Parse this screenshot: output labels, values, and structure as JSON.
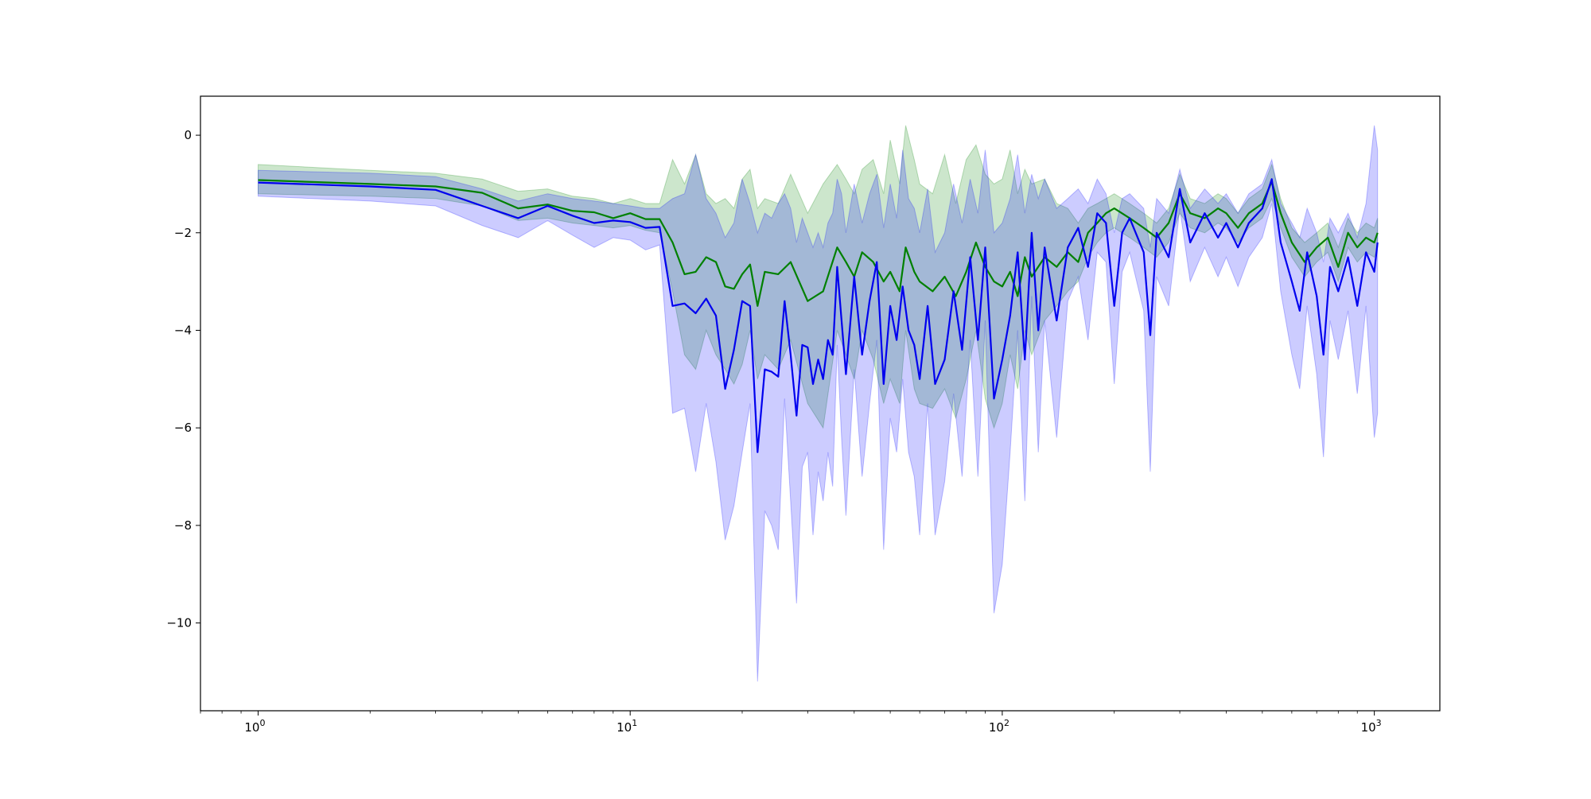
{
  "chart_data": {
    "type": "line",
    "title": "",
    "xlabel": "",
    "ylabel": "",
    "xscale": "log",
    "xlim": [
      0.7,
      1500
    ],
    "ylim": [
      -11.8,
      0.8
    ],
    "grid": false,
    "x_ticks": [
      {
        "value": 1,
        "base": "10",
        "exp": "0"
      },
      {
        "value": 10,
        "base": "10",
        "exp": "1"
      },
      {
        "value": 100,
        "base": "10",
        "exp": "2"
      },
      {
        "value": 1000,
        "base": "10",
        "exp": "3"
      }
    ],
    "y_ticks": [
      {
        "value": 0,
        "label": "0"
      },
      {
        "value": -2,
        "label": "−2"
      },
      {
        "value": -4,
        "label": "−4"
      },
      {
        "value": -6,
        "label": "−6"
      },
      {
        "value": -8,
        "label": "−8"
      },
      {
        "value": -10,
        "label": "−10"
      }
    ],
    "series": [
      {
        "color": "#008000",
        "band_color": "#008000",
        "band_opacity": 0.2,
        "x": [
          1,
          2,
          3,
          4,
          5,
          6,
          7,
          8,
          9,
          10,
          11,
          12,
          13,
          14,
          15,
          16,
          17,
          18,
          19,
          20,
          21,
          22,
          23,
          25,
          27,
          30,
          33,
          36,
          38,
          40,
          42,
          45,
          48,
          50,
          53,
          55,
          58,
          60,
          65,
          70,
          75,
          80,
          85,
          90,
          95,
          100,
          105,
          110,
          115,
          120,
          130,
          140,
          150,
          160,
          170,
          180,
          190,
          200,
          220,
          240,
          260,
          280,
          300,
          320,
          350,
          380,
          400,
          430,
          460,
          500,
          530,
          560,
          600,
          650,
          700,
          750,
          800,
          850,
          900,
          950,
          1000,
          1020
        ],
        "y": [
          -0.92,
          -1.0,
          -1.05,
          -1.18,
          -1.5,
          -1.42,
          -1.55,
          -1.58,
          -1.7,
          -1.6,
          -1.72,
          -1.72,
          -2.2,
          -2.85,
          -2.8,
          -2.5,
          -2.6,
          -3.1,
          -3.15,
          -2.85,
          -2.65,
          -3.5,
          -2.8,
          -2.85,
          -2.6,
          -3.4,
          -3.2,
          -2.3,
          -2.6,
          -2.9,
          -2.4,
          -2.6,
          -3.0,
          -2.8,
          -3.2,
          -2.3,
          -2.8,
          -3.0,
          -3.2,
          -2.9,
          -3.3,
          -2.8,
          -2.2,
          -2.7,
          -3.0,
          -3.1,
          -2.8,
          -3.3,
          -2.5,
          -2.9,
          -2.5,
          -2.7,
          -2.4,
          -2.6,
          -2.0,
          -1.8,
          -1.6,
          -1.5,
          -1.7,
          -1.9,
          -2.1,
          -1.8,
          -1.2,
          -1.6,
          -1.7,
          -1.5,
          -1.6,
          -1.9,
          -1.6,
          -1.4,
          -0.95,
          -1.6,
          -2.2,
          -2.6,
          -2.3,
          -2.1,
          -2.7,
          -2.0,
          -2.3,
          -2.1,
          -2.2,
          -2.0
        ],
        "lower": [
          -1.2,
          -1.25,
          -1.3,
          -1.45,
          -1.75,
          -1.7,
          -1.8,
          -1.85,
          -1.9,
          -1.85,
          -1.95,
          -2.0,
          -3.2,
          -4.5,
          -4.8,
          -4.0,
          -4.5,
          -4.8,
          -5.1,
          -4.7,
          -4.0,
          -5.0,
          -4.5,
          -4.8,
          -4.2,
          -5.5,
          -6.0,
          -4.0,
          -4.5,
          -5.0,
          -4.0,
          -4.6,
          -5.5,
          -5.0,
          -5.5,
          -4.0,
          -5.2,
          -5.5,
          -5.6,
          -5.2,
          -5.8,
          -5.0,
          -4.0,
          -5.4,
          -6.0,
          -5.5,
          -4.5,
          -5.2,
          -4.0,
          -4.5,
          -3.8,
          -3.5,
          -3.2,
          -3.0,
          -2.5,
          -2.2,
          -2.0,
          -1.9,
          -2.1,
          -2.3,
          -2.5,
          -2.2,
          -1.6,
          -1.9,
          -2.0,
          -1.8,
          -1.9,
          -2.2,
          -1.9,
          -1.7,
          -1.3,
          -1.9,
          -2.5,
          -2.9,
          -2.6,
          -2.4,
          -3.0,
          -2.3,
          -2.6,
          -2.4,
          -2.5,
          -2.3
        ],
        "upper": [
          -0.6,
          -0.72,
          -0.78,
          -0.9,
          -1.15,
          -1.1,
          -1.25,
          -1.3,
          -1.4,
          -1.3,
          -1.4,
          -1.4,
          -0.5,
          -1.0,
          -0.4,
          -1.2,
          -1.4,
          -1.3,
          -1.5,
          -0.9,
          -0.7,
          -1.5,
          -1.3,
          -1.4,
          -0.8,
          -1.6,
          -1.0,
          -0.6,
          -0.9,
          -1.2,
          -0.7,
          -0.5,
          -1.2,
          -0.1,
          -1.0,
          0.2,
          -0.5,
          -1.0,
          -1.2,
          -0.4,
          -1.4,
          -0.5,
          -0.2,
          -0.8,
          -1.0,
          -0.9,
          -0.3,
          -1.2,
          -0.7,
          -1.0,
          -0.9,
          -1.4,
          -1.5,
          -1.8,
          -1.5,
          -1.4,
          -1.3,
          -1.2,
          -1.4,
          -1.6,
          -1.8,
          -1.5,
          -0.8,
          -1.3,
          -1.4,
          -1.2,
          -1.3,
          -1.6,
          -1.3,
          -1.1,
          -0.6,
          -1.3,
          -1.9,
          -2.2,
          -2.0,
          -1.8,
          -2.3,
          -1.7,
          -2.0,
          -1.8,
          -1.9,
          -1.7
        ]
      },
      {
        "color": "#0000ee",
        "band_color": "#0000ff",
        "band_opacity": 0.2,
        "x": [
          1,
          2,
          3,
          4,
          5,
          6,
          7,
          8,
          9,
          10,
          11,
          12,
          13,
          14,
          15,
          16,
          17,
          18,
          19,
          20,
          21,
          22,
          23,
          24,
          25,
          26,
          27,
          28,
          29,
          30,
          31,
          32,
          33,
          34,
          35,
          36,
          37,
          38,
          40,
          42,
          44,
          46,
          48,
          50,
          52,
          54,
          56,
          58,
          60,
          63,
          66,
          70,
          74,
          78,
          82,
          86,
          90,
          95,
          100,
          105,
          110,
          115,
          120,
          125,
          130,
          140,
          150,
          160,
          170,
          180,
          190,
          200,
          210,
          220,
          240,
          250,
          260,
          280,
          300,
          320,
          350,
          380,
          400,
          430,
          460,
          500,
          530,
          560,
          600,
          630,
          660,
          700,
          730,
          760,
          800,
          850,
          900,
          950,
          1000,
          1020
        ],
        "y": [
          -0.97,
          -1.05,
          -1.12,
          -1.45,
          -1.7,
          -1.45,
          -1.65,
          -1.8,
          -1.75,
          -1.78,
          -1.9,
          -1.88,
          -3.5,
          -3.45,
          -3.65,
          -3.35,
          -3.7,
          -5.2,
          -4.4,
          -3.4,
          -3.5,
          -6.5,
          -4.8,
          -4.85,
          -4.95,
          -3.4,
          -4.5,
          -5.75,
          -4.3,
          -4.35,
          -5.1,
          -4.6,
          -5.0,
          -4.2,
          -4.5,
          -2.7,
          -3.8,
          -4.9,
          -2.9,
          -4.5,
          -3.4,
          -2.6,
          -5.1,
          -3.5,
          -4.2,
          -3.1,
          -4.0,
          -4.3,
          -5.0,
          -3.5,
          -5.1,
          -4.6,
          -3.2,
          -4.4,
          -2.5,
          -4.2,
          -2.3,
          -5.4,
          -4.6,
          -3.7,
          -2.4,
          -4.6,
          -2.0,
          -4.0,
          -2.3,
          -3.8,
          -2.3,
          -1.9,
          -2.7,
          -1.6,
          -1.8,
          -3.5,
          -2.0,
          -1.7,
          -2.4,
          -4.1,
          -2.0,
          -2.5,
          -1.1,
          -2.2,
          -1.6,
          -2.1,
          -1.8,
          -2.3,
          -1.8,
          -1.5,
          -0.9,
          -2.2,
          -3.0,
          -3.6,
          -2.4,
          -3.3,
          -4.5,
          -2.7,
          -3.2,
          -2.5,
          -3.5,
          -2.4,
          -2.8,
          -2.2
        ],
        "lower": [
          -1.25,
          -1.35,
          -1.45,
          -1.85,
          -2.1,
          -1.75,
          -2.05,
          -2.3,
          -2.1,
          -2.15,
          -2.35,
          -2.25,
          -5.7,
          -5.6,
          -6.9,
          -5.5,
          -6.7,
          -8.3,
          -7.6,
          -6.5,
          -5.5,
          -11.2,
          -7.7,
          -8.0,
          -8.5,
          -5.4,
          -7.5,
          -9.6,
          -6.8,
          -6.5,
          -8.2,
          -6.9,
          -7.5,
          -6.5,
          -7.2,
          -4.3,
          -6.2,
          -7.8,
          -4.8,
          -7.0,
          -5.5,
          -4.2,
          -8.5,
          -5.8,
          -6.5,
          -5.0,
          -6.5,
          -7.0,
          -8.2,
          -5.5,
          -8.2,
          -7.1,
          -5.3,
          -7.0,
          -4.2,
          -7.0,
          -3.8,
          -9.8,
          -8.8,
          -6.5,
          -4.0,
          -7.5,
          -3.3,
          -6.5,
          -3.8,
          -6.2,
          -3.4,
          -2.9,
          -4.2,
          -2.4,
          -2.6,
          -5.1,
          -2.8,
          -2.4,
          -3.6,
          -6.9,
          -2.9,
          -3.5,
          -1.5,
          -3.0,
          -2.3,
          -2.9,
          -2.5,
          -3.1,
          -2.5,
          -2.1,
          -1.4,
          -3.2,
          -4.5,
          -5.2,
          -3.5,
          -4.9,
          -6.6,
          -3.8,
          -4.6,
          -3.6,
          -5.3,
          -3.5,
          -6.2,
          -5.7
        ],
        "upper": [
          -0.72,
          -0.78,
          -0.85,
          -1.1,
          -1.35,
          -1.2,
          -1.3,
          -1.35,
          -1.4,
          -1.45,
          -1.5,
          -1.5,
          -1.3,
          -1.2,
          -0.4,
          -1.3,
          -1.6,
          -2.1,
          -1.8,
          -0.9,
          -1.4,
          -2.0,
          -1.6,
          -1.7,
          -1.4,
          -1.2,
          -1.5,
          -2.2,
          -1.7,
          -2.0,
          -2.3,
          -2.0,
          -2.3,
          -1.8,
          -1.6,
          -0.9,
          -1.2,
          -2.0,
          -1.0,
          -1.8,
          -1.2,
          -0.8,
          -1.9,
          -1.0,
          -1.7,
          -0.3,
          -1.3,
          -1.5,
          -2.0,
          -1.1,
          -2.4,
          -2.0,
          -1.0,
          -1.8,
          -0.9,
          -1.6,
          -0.3,
          -2.0,
          -1.8,
          -1.3,
          -0.4,
          -1.6,
          -0.8,
          -1.3,
          -0.9,
          -1.5,
          -1.3,
          -1.1,
          -1.4,
          -0.9,
          -1.2,
          -2.0,
          -1.3,
          -1.2,
          -1.5,
          -2.3,
          -1.3,
          -1.6,
          -0.7,
          -1.5,
          -1.1,
          -1.4,
          -1.2,
          -1.6,
          -1.2,
          -1.0,
          -0.5,
          -1.4,
          -1.8,
          -2.1,
          -1.5,
          -2.0,
          -2.6,
          -1.7,
          -2.0,
          -1.6,
          -2.1,
          -1.4,
          0.2,
          -0.3
        ]
      }
    ]
  }
}
